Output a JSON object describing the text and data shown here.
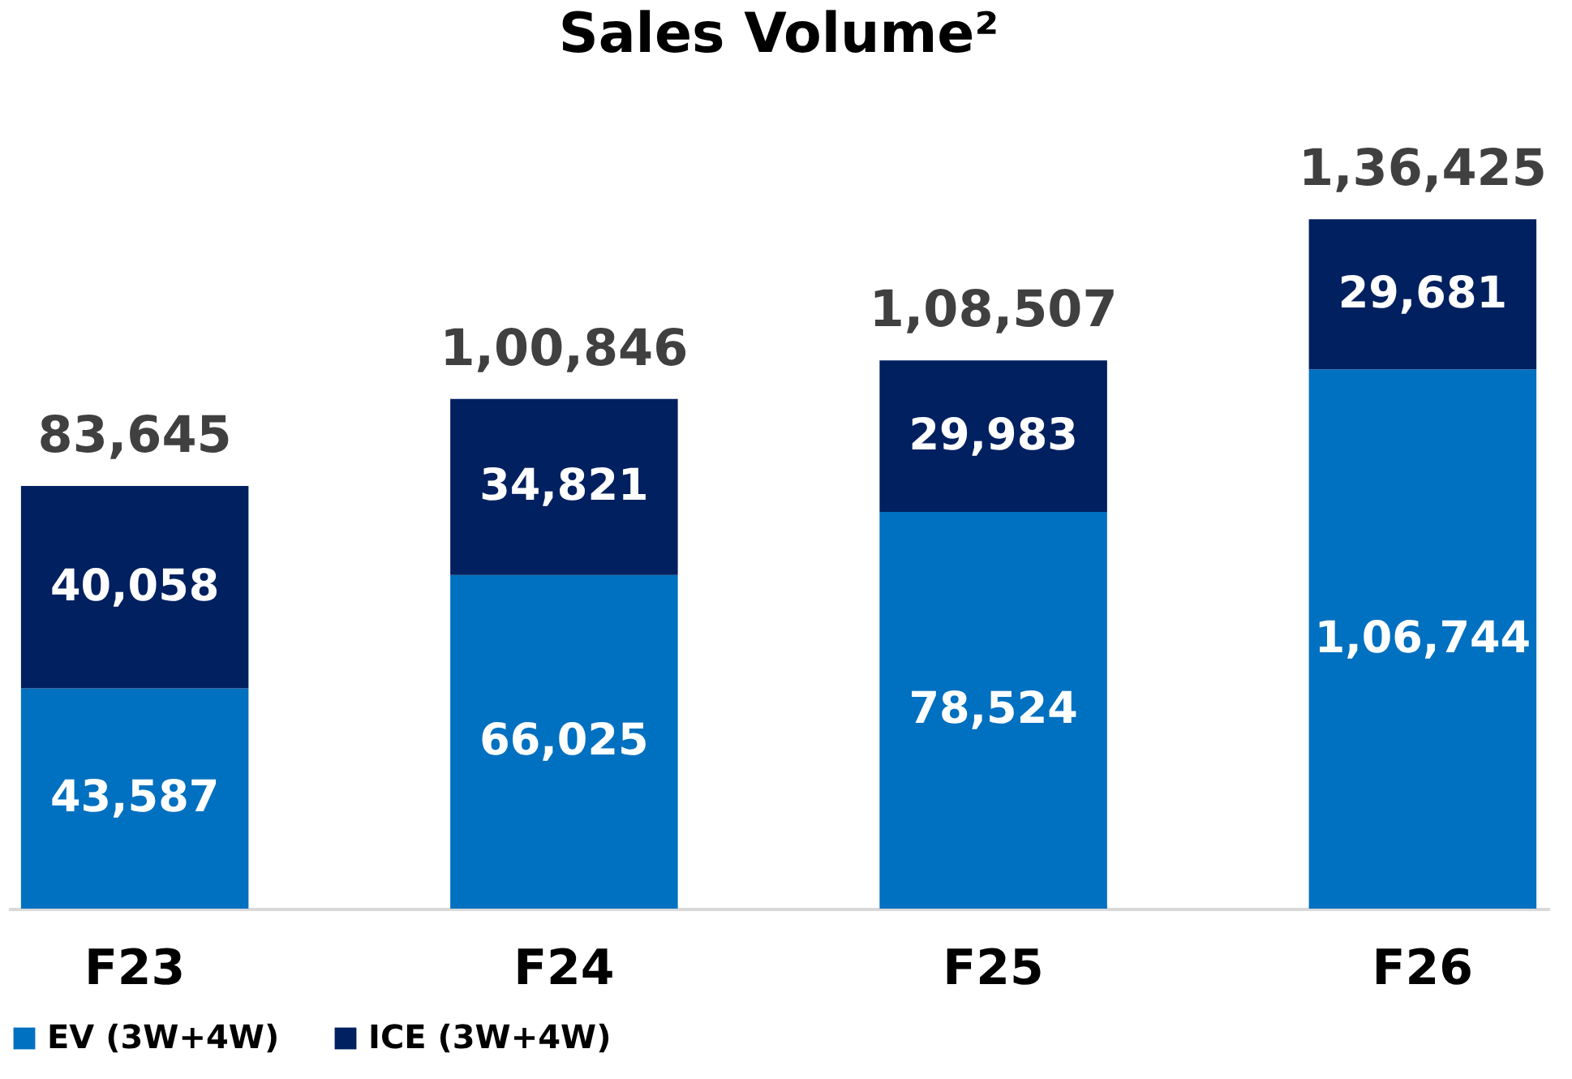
{
  "chart_data": {
    "type": "bar",
    "title": "Sales Volume²",
    "categories": [
      "F23",
      "F24",
      "F25",
      "F26"
    ],
    "stacked": true,
    "legend": "bottom",
    "series": [
      {
        "name": "EV (3W+4W)",
        "color": "#0070c0",
        "values": [
          43587,
          66025,
          78524,
          106744
        ],
        "value_labels": [
          "43,587",
          "66,025",
          "78,524",
          "1,06,744"
        ]
      },
      {
        "name": "ICE (3W+4W)",
        "color": "#002060",
        "values": [
          40058,
          34821,
          29983,
          29681
        ],
        "value_labels": [
          "40,058",
          "34,821",
          "29,983",
          "29,681"
        ]
      }
    ],
    "totals": [
      "83,645",
      "1,00,846",
      "1,08,507",
      "1,36,425"
    ]
  }
}
